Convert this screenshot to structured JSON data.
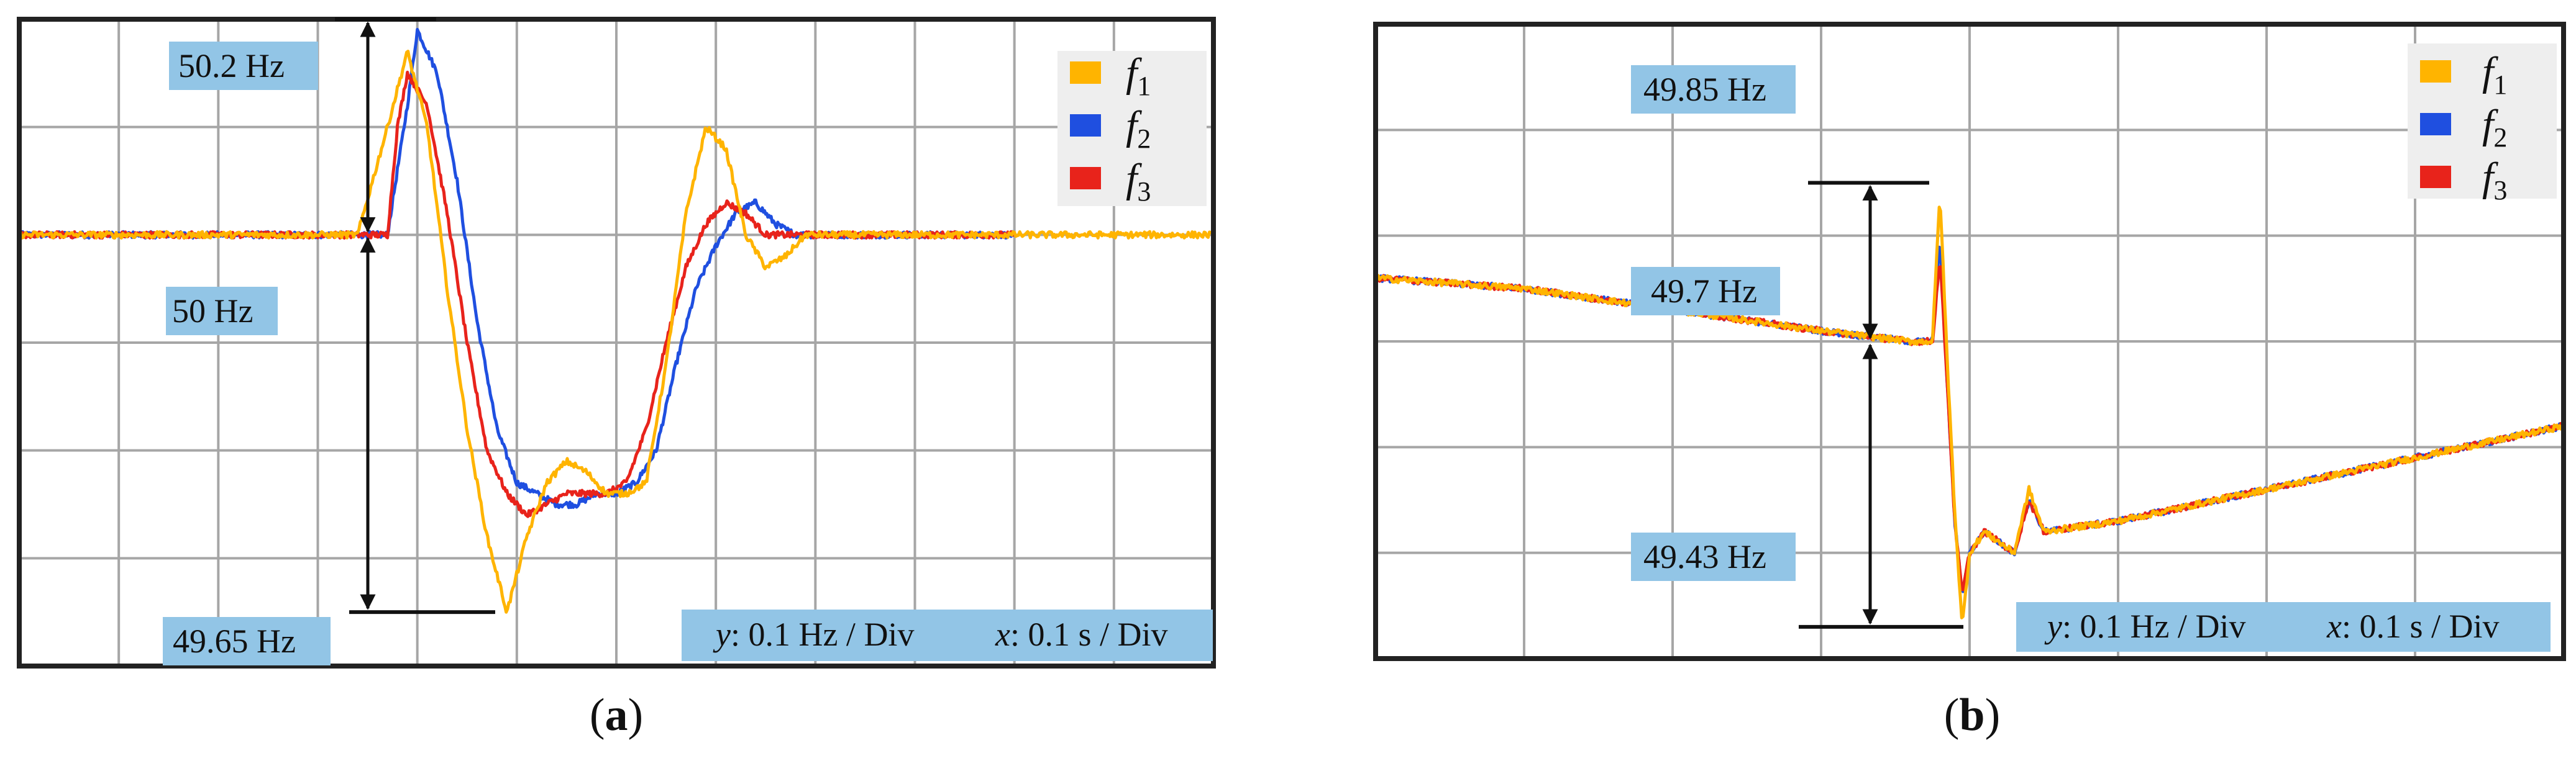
{
  "colors": {
    "f1": "#ffb400",
    "f2": "#1f4fe0",
    "f3": "#e8231b",
    "label_box": "#92c5e6",
    "grid": "#a6a6a6",
    "frame": "#222222"
  },
  "chart_data": [
    {
      "id": "a",
      "type": "line",
      "caption_letter": "a",
      "y_unit": "Hz",
      "x_unit": "s",
      "y_per_div": 0.1,
      "x_per_div": 0.1,
      "ylim": [
        49.6,
        50.2
      ],
      "xlim": [
        0,
        1.2
      ],
      "grid": true,
      "legend_position": "top-right",
      "annotations": [
        {
          "id": "max",
          "text": "50.2 Hz",
          "value": 50.2
        },
        {
          "id": "nominal",
          "text": "50 Hz",
          "value": 50.0
        },
        {
          "id": "min",
          "text": "49.65 Hz",
          "value": 49.65
        }
      ],
      "scale_text": {
        "y_var": "y",
        "y_rest": ": 0.1 Hz / Div",
        "x_var": "x",
        "x_rest": ": 0.1 s / Div"
      },
      "series": [
        {
          "name": "f",
          "sub": "1",
          "key": "f1",
          "x": [
            0,
            0.2,
            0.34,
            0.37,
            0.39,
            0.41,
            0.43,
            0.45,
            0.47,
            0.49,
            0.51,
            0.53,
            0.55,
            0.57,
            0.59,
            0.61,
            0.63,
            0.65,
            0.67,
            0.69,
            0.71,
            0.73,
            0.75,
            0.77,
            0.79,
            0.81,
            0.85,
            0.9,
            1.0,
            1.2
          ],
          "y": [
            50.0,
            50.0,
            50.0,
            50.1,
            50.17,
            50.1,
            49.95,
            49.82,
            49.72,
            49.65,
            49.72,
            49.77,
            49.79,
            49.78,
            49.76,
            49.76,
            49.77,
            49.88,
            50.02,
            50.1,
            50.08,
            50.0,
            49.97,
            49.98,
            50.0,
            50.0,
            50.0,
            50.0,
            50.0,
            50.0
          ]
        },
        {
          "name": "f",
          "sub": "2",
          "key": "f2",
          "x": [
            0,
            0.2,
            0.37,
            0.39,
            0.4,
            0.42,
            0.44,
            0.46,
            0.48,
            0.5,
            0.52,
            0.54,
            0.56,
            0.58,
            0.6,
            0.62,
            0.64,
            0.66,
            0.68,
            0.7,
            0.72,
            0.74,
            0.76,
            0.78,
            0.8,
            0.85,
            0.9,
            1.0
          ],
          "y": [
            50.0,
            50.0,
            50.0,
            50.12,
            50.19,
            50.15,
            50.05,
            49.92,
            49.82,
            49.77,
            49.76,
            49.75,
            49.75,
            49.76,
            49.76,
            49.77,
            49.8,
            49.88,
            49.95,
            49.99,
            50.02,
            50.03,
            50.01,
            50.0,
            50.0,
            50.0,
            50.0,
            50.0
          ]
        },
        {
          "name": "f",
          "sub": "3",
          "key": "f3",
          "x": [
            0,
            0.2,
            0.37,
            0.38,
            0.39,
            0.41,
            0.43,
            0.45,
            0.47,
            0.49,
            0.51,
            0.53,
            0.55,
            0.57,
            0.59,
            0.61,
            0.63,
            0.65,
            0.67,
            0.69,
            0.71,
            0.73,
            0.75,
            0.77,
            0.8,
            0.85,
            0.9,
            1.0
          ],
          "y": [
            50.0,
            50.0,
            50.0,
            50.1,
            50.15,
            50.12,
            50.02,
            49.9,
            49.8,
            49.76,
            49.74,
            49.75,
            49.76,
            49.76,
            49.76,
            49.77,
            49.82,
            49.9,
            49.97,
            50.01,
            50.03,
            50.02,
            50.0,
            50.0,
            50.0,
            50.0,
            50.0,
            50.0
          ]
        }
      ]
    },
    {
      "id": "b",
      "type": "line",
      "caption_letter": "b",
      "y_unit": "Hz",
      "x_unit": "s",
      "y_per_div": 0.1,
      "x_per_div": 0.1,
      "ylim": [
        49.4,
        50.0
      ],
      "xlim": [
        0,
        0.8
      ],
      "grid": true,
      "legend_position": "top-right",
      "annotations": [
        {
          "id": "max",
          "text": "49.85 Hz",
          "value": 49.85
        },
        {
          "id": "pre",
          "text": "49.7 Hz",
          "value": 49.7
        },
        {
          "id": "min",
          "text": "49.43 Hz",
          "value": 49.43
        }
      ],
      "scale_text": {
        "y_var": "y",
        "y_rest": ": 0.1 Hz / Div",
        "x_var": "x",
        "x_rest": ": 0.1 s / Div"
      },
      "series": [
        {
          "name": "f",
          "sub": "1",
          "key": "f1",
          "x": [
            0,
            0.1,
            0.2,
            0.3,
            0.36,
            0.375,
            0.38,
            0.385,
            0.39,
            0.395,
            0.4,
            0.41,
            0.42,
            0.43,
            0.44,
            0.45,
            0.5,
            0.6,
            0.7,
            0.8
          ],
          "y": [
            49.76,
            49.75,
            49.73,
            49.71,
            49.7,
            49.7,
            49.84,
            49.68,
            49.54,
            49.43,
            49.5,
            49.52,
            49.51,
            49.5,
            49.56,
            49.52,
            49.53,
            49.56,
            49.59,
            49.62
          ]
        },
        {
          "name": "f",
          "sub": "2",
          "key": "f2",
          "x": [
            0,
            0.1,
            0.2,
            0.3,
            0.36,
            0.375,
            0.38,
            0.385,
            0.39,
            0.395,
            0.4,
            0.41,
            0.42,
            0.43,
            0.44,
            0.45,
            0.5,
            0.6,
            0.7,
            0.8
          ],
          "y": [
            49.76,
            49.75,
            49.73,
            49.71,
            49.7,
            49.7,
            49.8,
            49.66,
            49.53,
            49.46,
            49.5,
            49.52,
            49.51,
            49.5,
            49.55,
            49.52,
            49.53,
            49.56,
            49.59,
            49.62
          ]
        },
        {
          "name": "f",
          "sub": "3",
          "key": "f3",
          "x": [
            0,
            0.1,
            0.2,
            0.3,
            0.36,
            0.375,
            0.38,
            0.385,
            0.39,
            0.395,
            0.4,
            0.41,
            0.42,
            0.43,
            0.44,
            0.45,
            0.5,
            0.6,
            0.7,
            0.8
          ],
          "y": [
            49.76,
            49.75,
            49.73,
            49.71,
            49.7,
            49.7,
            49.78,
            49.66,
            49.53,
            49.46,
            49.5,
            49.52,
            49.51,
            49.5,
            49.55,
            49.52,
            49.53,
            49.56,
            49.59,
            49.62
          ]
        }
      ]
    }
  ]
}
